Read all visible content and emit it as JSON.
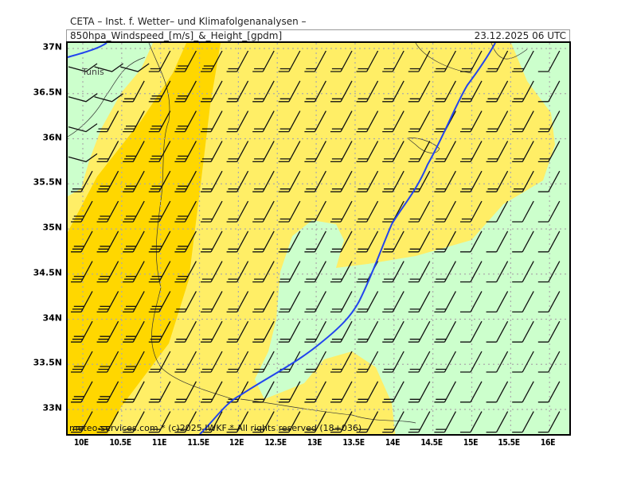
{
  "header": {
    "institute": "CETA – Inst. f. Wetter– und Klimafolgenanalysen –",
    "product": "850hpa_Windspeed_[m/s]_&_Height_[gpdm]",
    "valid_time": "23.12.2025 06 UTC"
  },
  "footer": "meteo-services.com * (c)2025 IWKF * All rights reserved (18+036)",
  "place_labels": [
    "Tunis"
  ],
  "axes": {
    "x_ticks": [
      "10E",
      "10.5E",
      "11E",
      "11.5E",
      "12E",
      "12.5E",
      "13E",
      "13.5E",
      "14E",
      "14.5E",
      "15E",
      "15.5E",
      "16E"
    ],
    "y_ticks": [
      "37N",
      "36.5N",
      "36N",
      "35.5N",
      "35N",
      "34.5N",
      "34N",
      "33.5N",
      "33N"
    ]
  },
  "colors": {
    "low_wind": "#ccffcc",
    "mid_wind": "#ffee66",
    "high_wind": "#ffd700",
    "height_contour": "#2244ee",
    "grid": "#aaaaaa"
  },
  "icons": [
    "wind-barb-icon"
  ]
}
